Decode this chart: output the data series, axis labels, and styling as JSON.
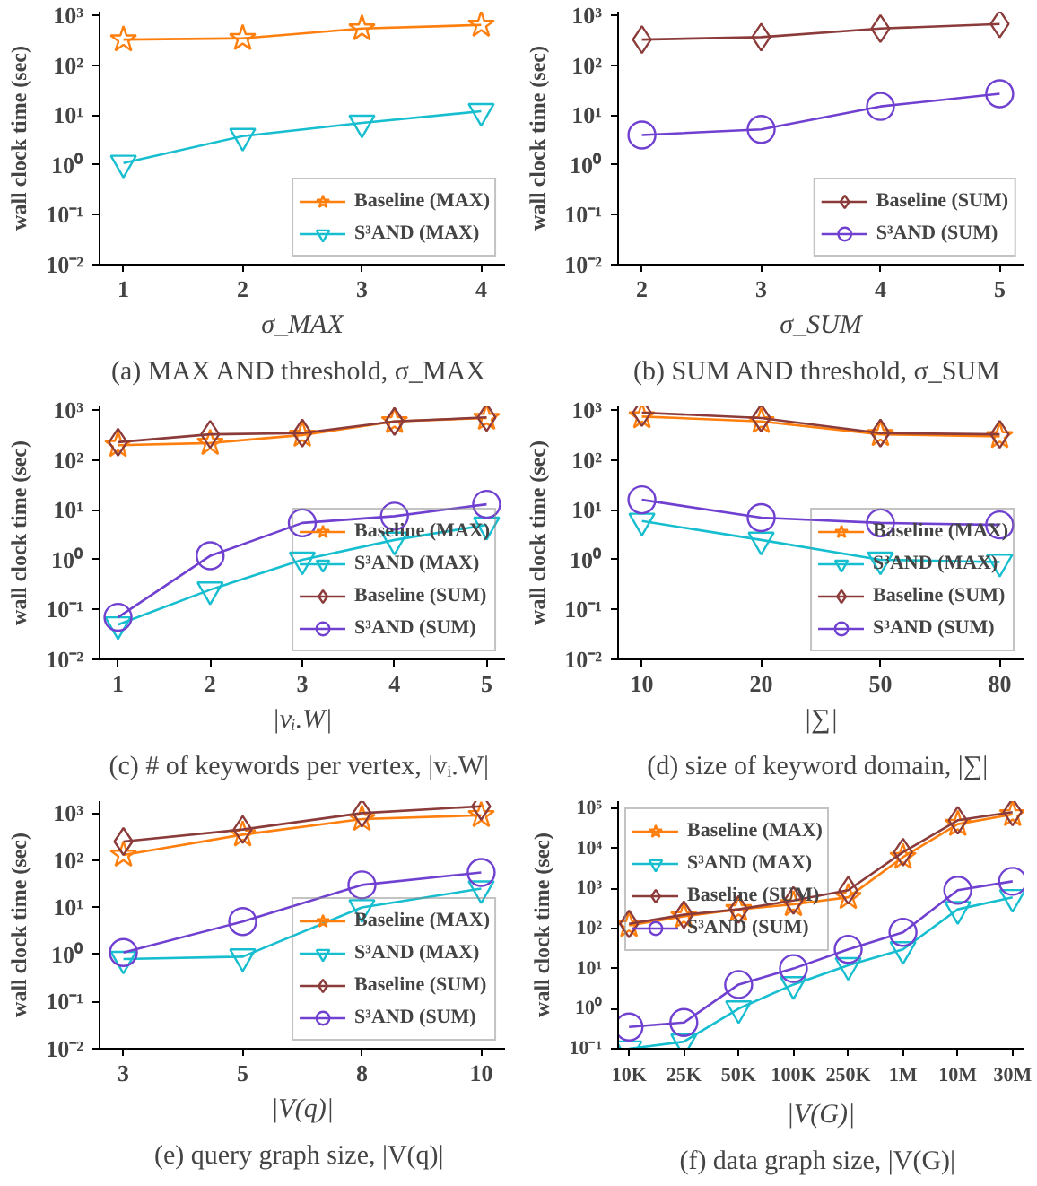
{
  "chart_data": [
    {
      "type": "line",
      "title": "(a)  MAX AND threshold, σ_MAX",
      "xlabel": "σ_MAX",
      "ylabel": "wall clock time (sec)",
      "categories": [
        "1",
        "2",
        "3",
        "4"
      ],
      "log": "y",
      "grid": false,
      "legend": "bottom right",
      "ylim": [
        0.01,
        1200
      ],
      "yticks": [
        {
          "value": 0.01,
          "label": "10⁻²"
        },
        {
          "value": 0.1,
          "label": "10⁻¹"
        },
        {
          "value": 1,
          "label": "10⁰"
        },
        {
          "value": 10,
          "label": "10¹"
        },
        {
          "value": 100,
          "label": "10²"
        },
        {
          "value": 1000,
          "label": "10³"
        }
      ],
      "series": [
        {
          "name": "Baseline (MAX)",
          "color": "#ff7f0e",
          "marker": "star",
          "values": [
            330,
            350,
            550,
            650
          ]
        },
        {
          "name": "S³AND (MAX)",
          "color": "#17becf",
          "marker": "triangle",
          "values": [
            1.1,
            3.8,
            7,
            12
          ]
        }
      ]
    },
    {
      "type": "line",
      "title": "(b)  SUM AND threshold, σ_SUM",
      "xlabel": "σ_SUM",
      "ylabel": "wall clock time (sec)",
      "categories": [
        "2",
        "3",
        "4",
        "5"
      ],
      "log": "y",
      "grid": false,
      "legend": "bottom right",
      "ylim": [
        0.01,
        1200
      ],
      "yticks": [
        {
          "value": 0.01,
          "label": "10⁻²"
        },
        {
          "value": 0.1,
          "label": "10⁻¹"
        },
        {
          "value": 1,
          "label": "10⁰"
        },
        {
          "value": 10,
          "label": "10¹"
        },
        {
          "value": 100,
          "label": "10²"
        },
        {
          "value": 1000,
          "label": "10³"
        }
      ],
      "series": [
        {
          "name": "Baseline (SUM)",
          "color": "#8c3b3b",
          "marker": "diamond",
          "values": [
            330,
            370,
            550,
            680
          ]
        },
        {
          "name": "S³AND (SUM)",
          "color": "#7040d0",
          "marker": "circle",
          "values": [
            4,
            5.2,
            15,
            27
          ]
        }
      ]
    },
    {
      "type": "line",
      "title": "(c)  # of keywords per vertex, |vᵢ.W|",
      "xlabel": "|vᵢ.W|",
      "ylabel": "wall clock time (sec)",
      "categories": [
        "1",
        "2",
        "3",
        "4",
        "5"
      ],
      "log": "y",
      "grid": false,
      "legend": "bottom right",
      "ylim": [
        0.01,
        1200
      ],
      "yticks": [
        {
          "value": 0.01,
          "label": "10⁻²"
        },
        {
          "value": 0.1,
          "label": "10⁻¹"
        },
        {
          "value": 1,
          "label": "10⁰"
        },
        {
          "value": 10,
          "label": "10¹"
        },
        {
          "value": 100,
          "label": "10²"
        },
        {
          "value": 1000,
          "label": "10³"
        }
      ],
      "series": [
        {
          "name": "Baseline (MAX)",
          "color": "#ff7f0e",
          "marker": "star",
          "values": [
            200,
            220,
            320,
            600,
            700
          ]
        },
        {
          "name": "S³AND (MAX)",
          "color": "#17becf",
          "marker": "triangle",
          "values": [
            0.05,
            0.25,
            1.0,
            2.5,
            5
          ]
        },
        {
          "name": "Baseline (SUM)",
          "color": "#8c3b3b",
          "marker": "diamond",
          "values": [
            230,
            330,
            350,
            600,
            720
          ]
        },
        {
          "name": "S³AND (SUM)",
          "color": "#7040d0",
          "marker": "circle",
          "values": [
            0.07,
            1.2,
            5.5,
            7.5,
            13
          ]
        }
      ]
    },
    {
      "type": "line",
      "title": "(d)  size of keyword domain, |∑|",
      "xlabel": "|∑|",
      "ylabel": "wall clock time (sec)",
      "categories": [
        "10",
        "20",
        "50",
        "80"
      ],
      "log": "y",
      "grid": false,
      "legend": "bottom right",
      "ylim": [
        0.01,
        1200
      ],
      "yticks": [
        {
          "value": 0.01,
          "label": "10⁻²"
        },
        {
          "value": 0.1,
          "label": "10⁻¹"
        },
        {
          "value": 1,
          "label": "10⁰"
        },
        {
          "value": 10,
          "label": "10¹"
        },
        {
          "value": 100,
          "label": "10²"
        },
        {
          "value": 1000,
          "label": "10³"
        }
      ],
      "series": [
        {
          "name": "Baseline (MAX)",
          "color": "#ff7f0e",
          "marker": "star",
          "values": [
            750,
            600,
            330,
            300
          ]
        },
        {
          "name": "S³AND (MAX)",
          "color": "#17becf",
          "marker": "triangle",
          "values": [
            6,
            2.5,
            1.0,
            0.9
          ]
        },
        {
          "name": "Baseline (SUM)",
          "color": "#8c3b3b",
          "marker": "diamond",
          "values": [
            900,
            700,
            350,
            330
          ]
        },
        {
          "name": "S³AND (SUM)",
          "color": "#7040d0",
          "marker": "circle",
          "values": [
            16,
            7,
            5.5,
            5
          ]
        }
      ]
    },
    {
      "type": "line",
      "title": "(e)  query graph size, |V(q)|",
      "xlabel": "|V(q)|",
      "ylabel": "wall clock time (sec)",
      "categories": [
        "3",
        "5",
        "8",
        "10"
      ],
      "log": "y",
      "grid": false,
      "legend": "bottom right",
      "ylim": [
        0.01,
        1800
      ],
      "yticks": [
        {
          "value": 0.01,
          "label": "10⁻²"
        },
        {
          "value": 0.1,
          "label": "10⁻¹"
        },
        {
          "value": 1,
          "label": "10⁰"
        },
        {
          "value": 10,
          "label": "10¹"
        },
        {
          "value": 100,
          "label": "10²"
        },
        {
          "value": 1000,
          "label": "10³"
        }
      ],
      "series": [
        {
          "name": "Baseline (MAX)",
          "color": "#ff7f0e",
          "marker": "star",
          "values": [
            130,
            350,
            750,
            900
          ]
        },
        {
          "name": "S³AND (MAX)",
          "color": "#17becf",
          "marker": "triangle",
          "values": [
            0.8,
            0.9,
            10,
            25
          ]
        },
        {
          "name": "Baseline (SUM)",
          "color": "#8c3b3b",
          "marker": "diamond",
          "values": [
            250,
            450,
            1000,
            1400
          ]
        },
        {
          "name": "S³AND (SUM)",
          "color": "#7040d0",
          "marker": "circle",
          "values": [
            1.1,
            5,
            30,
            55
          ]
        }
      ]
    },
    {
      "type": "line",
      "title": "(f)  data graph size, |V(G)|",
      "xlabel": "|V(G)|",
      "ylabel": "wall clock time (sec)",
      "categories": [
        "10K",
        "25K",
        "50K",
        "100K",
        "250K",
        "1M",
        "10M",
        "30M"
      ],
      "log": "y",
      "grid": false,
      "legend": "top left",
      "ylim": [
        0.1,
        150000
      ],
      "yticks": [
        {
          "value": 0.1,
          "label": "10⁻¹"
        },
        {
          "value": 1,
          "label": "10⁰"
        },
        {
          "value": 10,
          "label": "10¹"
        },
        {
          "value": 100,
          "label": "10²"
        },
        {
          "value": 1000,
          "label": "10³"
        },
        {
          "value": 10000,
          "label": "10⁴"
        },
        {
          "value": 100000,
          "label": "10⁵"
        }
      ],
      "series": [
        {
          "name": "Baseline (MAX)",
          "color": "#ff7f0e",
          "marker": "star",
          "values": [
            120,
            200,
            300,
            400,
            600,
            6000,
            40000,
            70000
          ]
        },
        {
          "name": "S³AND (MAX)",
          "color": "#17becf",
          "marker": "triangle",
          "values": [
            0.1,
            0.15,
            1,
            4,
            12,
            30,
            300,
            600
          ]
        },
        {
          "name": "Baseline (SUM)",
          "color": "#8c3b3b",
          "marker": "diamond",
          "values": [
            130,
            220,
            300,
            500,
            900,
            8000,
            50000,
            80000
          ]
        },
        {
          "name": "S³AND (SUM)",
          "color": "#7040d0",
          "marker": "circle",
          "values": [
            0.35,
            0.45,
            4,
            10,
            30,
            80,
            900,
            1500
          ]
        }
      ]
    }
  ]
}
